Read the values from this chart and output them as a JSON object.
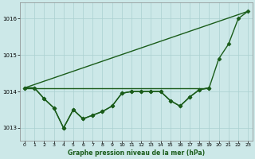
{
  "title": "",
  "xlabel": "Graphe pression niveau de la mer (hPa)",
  "ylabel": "",
  "background_color": "#cce8e8",
  "plot_bg_color": "#cce8e8",
  "grid_color": "#aad0d0",
  "line_color": "#1a5c1a",
  "xlim": [
    -0.5,
    23.5
  ],
  "ylim": [
    1012.65,
    1016.45
  ],
  "yticks": [
    1013,
    1014,
    1015,
    1016
  ],
  "xticks": [
    0,
    1,
    2,
    3,
    4,
    5,
    6,
    7,
    8,
    9,
    10,
    11,
    12,
    13,
    14,
    15,
    16,
    17,
    18,
    19,
    20,
    21,
    22,
    23
  ],
  "line1_x": [
    0,
    1,
    2,
    3,
    4,
    5,
    6,
    7,
    8,
    9,
    10,
    11,
    12,
    13,
    14,
    15,
    16,
    17,
    18,
    19,
    20,
    21,
    22,
    23
  ],
  "line1_y": [
    1014.1,
    1014.1,
    1013.8,
    1013.55,
    1013.0,
    1013.5,
    1013.25,
    1013.35,
    1013.45,
    1013.6,
    1013.95,
    1014.0,
    1014.0,
    1014.0,
    1014.0,
    1013.75,
    1013.6,
    1013.85,
    1014.05,
    1014.1,
    1014.9,
    1015.3,
    1016.0,
    1016.2
  ],
  "line2_x": [
    0,
    1,
    2,
    3,
    4,
    5,
    6,
    7,
    8,
    9,
    10,
    11,
    12,
    13,
    14,
    15,
    16,
    17,
    18,
    19
  ],
  "line2_y": [
    1014.1,
    1014.1,
    1013.8,
    1013.55,
    1013.0,
    1013.5,
    1013.25,
    1013.35,
    1013.45,
    1013.6,
    1013.95,
    1014.0,
    1014.0,
    1014.0,
    1014.0,
    1013.75,
    1013.6,
    1013.85,
    1014.05,
    1014.1
  ],
  "line3_x": [
    0,
    19
  ],
  "line3_y": [
    1014.1,
    1014.1
  ],
  "line4_x": [
    0,
    23
  ],
  "line4_y": [
    1014.1,
    1016.2
  ],
  "marker": "D",
  "markersize": 2.5,
  "linewidth": 1.0
}
